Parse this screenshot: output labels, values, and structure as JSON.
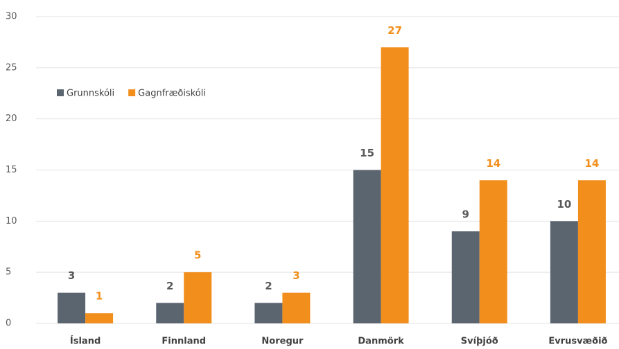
{
  "chart_data": {
    "type": "bar",
    "categories": [
      "Ísland",
      "Finnland",
      "Noregur",
      "Danmörk",
      "Svíþjóð",
      "Evrusvæðið"
    ],
    "series": [
      {
        "name": "Grunnskóli",
        "color": "#5b6570",
        "values": [
          3,
          2,
          2,
          15,
          9,
          10
        ]
      },
      {
        "name": "Gagnfræðiskóli",
        "color": "#f28e1c",
        "values": [
          1,
          5,
          3,
          27,
          14,
          14
        ]
      }
    ],
    "ylim": [
      0,
      30
    ],
    "yticks": [
      0,
      5,
      10,
      15,
      20,
      25,
      30
    ],
    "grid": true,
    "legend": "upper left"
  }
}
